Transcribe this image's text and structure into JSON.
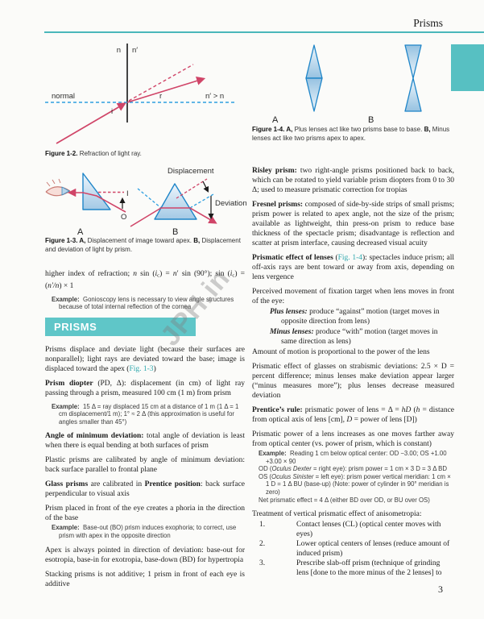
{
  "page": {
    "header_title": "Prisms",
    "page_number": "3",
    "watermark": "JPH.in"
  },
  "colors": {
    "accent_teal": "#4ab7bb",
    "section_bar_teal": "#5fc6c8",
    "chapter_tab_teal": "#57c0c2",
    "figure_ref_teal": "#2fa8ad",
    "ray_red": "#d04568",
    "prism_blue": "#1f85c8",
    "normal_blue": "#2e9fe0"
  },
  "fig12": {
    "labels": {
      "medium_left": "n",
      "medium_right": "n′",
      "normal": "normal",
      "incidence": "i",
      "refraction": "r",
      "relation": "n′ > n"
    },
    "caption": [
      {
        "t": "Figure 1-2. ",
        "s": "b"
      },
      {
        "t": "Refraction of light ray."
      }
    ]
  },
  "fig13": {
    "labels": {
      "image": "I",
      "object": "O",
      "panel_a": "A",
      "panel_b": "B",
      "displacement": "Displacement",
      "deviation": "Deviation"
    },
    "caption": [
      {
        "t": "Figure 1-3. ",
        "s": "b"
      },
      {
        "t": "A,",
        "s": "b"
      },
      {
        "t": " Displacement of image toward apex. "
      },
      {
        "t": "B,",
        "s": "b"
      },
      {
        "t": " Displacement and deviation of light by prism."
      }
    ]
  },
  "fig14": {
    "labels": {
      "panel_a": "A",
      "panel_b": "B"
    },
    "caption": [
      {
        "t": "Figure 1-4. ",
        "s": "b"
      },
      {
        "t": "A,",
        "s": "b"
      },
      {
        "t": " Plus lenses act like two prisms base to base. "
      },
      {
        "t": "B,",
        "s": "b"
      },
      {
        "t": " Minus lenses act like two prisms apex to apex."
      }
    ]
  },
  "left": {
    "blocks": [
      {
        "type": "p",
        "seg": [
          {
            "t": "higher index of refraction; "
          },
          {
            "t": "n",
            "s": "i"
          },
          {
            "t": " sin ("
          },
          {
            "t": "i",
            "s": "i"
          },
          {
            "t": "c",
            "s": "u"
          },
          {
            "t": ") = "
          },
          {
            "t": "n",
            "s": "i"
          },
          {
            "t": "′ sin (90°); sin ("
          },
          {
            "t": "i",
            "s": "i"
          },
          {
            "t": "c",
            "s": "u"
          },
          {
            "t": ") = ("
          },
          {
            "t": "n′/n",
            "s": "i"
          },
          {
            "t": ") × 1"
          }
        ]
      },
      {
        "type": "ex",
        "lines": [
          [
            {
              "t": "Example:  ",
              "s": "b"
            },
            {
              "t": "Gonioscopy lens is necessary to view angle structures because of total internal reflection of the cornea"
            }
          ]
        ]
      },
      {
        "type": "h",
        "seg": [
          {
            "t": "PRISMS"
          }
        ]
      },
      {
        "type": "p",
        "seg": [
          {
            "t": "Prisms displace and deviate light (because their surfaces are nonparallel); light rays are deviated toward the base; image is displaced toward the apex ("
          },
          {
            "t": "Fig. 1-3",
            "s": "t"
          },
          {
            "t": ")"
          }
        ]
      },
      {
        "type": "p",
        "seg": [
          {
            "t": "Prism diopter",
            "s": "b"
          },
          {
            "t": " (PD, Δ): displacement (in cm) of light ray passing through a prism, measured 100 cm (1 m) from prism"
          }
        ]
      },
      {
        "type": "ex",
        "lines": [
          [
            {
              "t": "Example:  ",
              "s": "b"
            },
            {
              "t": "15 Δ = ray displaced 15 cm at a distance of 1 m (1 Δ = 1 cm displacement/1 m); 1° ≈ 2 Δ (this approximation is useful for angles smaller than 45°)"
            }
          ]
        ]
      },
      {
        "type": "p",
        "seg": [
          {
            "t": "Angle of minimum deviation:",
            "s": "b"
          },
          {
            "t": " total angle of deviation is least when there is equal bending at both surfaces of prism"
          }
        ]
      },
      {
        "type": "p",
        "seg": [
          {
            "t": "Plastic prisms are calibrated by angle of minimum deviation: back surface parallel to frontal plane"
          }
        ]
      },
      {
        "type": "p",
        "seg": [
          {
            "t": "Glass prisms",
            "s": "b"
          },
          {
            "t": " are calibrated in "
          },
          {
            "t": "Prentice position",
            "s": "b"
          },
          {
            "t": ": back surface perpendicular to visual axis"
          }
        ]
      },
      {
        "type": "p",
        "cls": "tight",
        "seg": [
          {
            "t": "Prism placed in front of the eye creates a phoria in the direction of the base"
          }
        ]
      },
      {
        "type": "ex",
        "lines": [
          [
            {
              "t": "Example:  ",
              "s": "b"
            },
            {
              "t": "Base-out (BO) prism induces exophoria; to correct, use prism with apex in the opposite direction"
            }
          ]
        ]
      },
      {
        "type": "p",
        "seg": [
          {
            "t": "Apex is always pointed in direction of deviation: base-out for esotropia, base-in for exotropia, base-down (BD) for hypertropia"
          }
        ]
      },
      {
        "type": "p",
        "seg": [
          {
            "t": "Stacking prisms is not additive; 1 prism in front of each eye is additive"
          }
        ]
      }
    ]
  },
  "right": {
    "blocks": [
      {
        "type": "p",
        "seg": [
          {
            "t": "Risley prism:",
            "s": "b"
          },
          {
            "t": " two right-angle prisms positioned back to back, which can be rotated to yield variable prism diopters from 0 to 30 Δ; used to measure prismatic correction for tropias"
          }
        ]
      },
      {
        "type": "p",
        "seg": [
          {
            "t": "Fresnel prisms:",
            "s": "b"
          },
          {
            "t": " composed of side-by-side strips of small prisms; prism power is related to apex angle, not the size of the prism; available as lightweight, thin press-on prism to reduce base thickness of the spectacle prism; disadvantage is reflection and scatter at prism interface, causing decreased visual acuity"
          }
        ]
      },
      {
        "type": "p",
        "seg": [
          {
            "t": "Prismatic effect of lenses",
            "s": "b"
          },
          {
            "t": " ("
          },
          {
            "t": "Fig. 1-4",
            "s": "t"
          },
          {
            "t": "): spectacles induce prism; all off-axis rays are bent toward or away from axis, depending on lens vergence"
          }
        ]
      },
      {
        "type": "p",
        "cls": "tight",
        "seg": [
          {
            "t": "Perceived movement of fixation target when lens moves in front of the eye:"
          }
        ]
      },
      {
        "type": "p",
        "cls": "ind1",
        "seg": [
          {
            "t": "Plus lenses:",
            "s": "b i"
          },
          {
            "t": " produce “against” motion (target moves in opposite direction from lens)"
          }
        ]
      },
      {
        "type": "p",
        "cls": "ind1",
        "seg": [
          {
            "t": "Minus lenses:",
            "s": "b i"
          },
          {
            "t": " produce “with” motion (target moves in same direction as lens)"
          }
        ]
      },
      {
        "type": "p",
        "seg": [
          {
            "t": "Amount of motion is proportional to the power of the lens"
          }
        ]
      },
      {
        "type": "p",
        "seg": [
          {
            "t": "Prismatic effect of glasses on strabismic deviations: 2.5 × D = percent difference; minus lenses make deviation appear larger (“minus measures more”); plus lenses decrease measured deviation"
          }
        ]
      },
      {
        "type": "p",
        "seg": [
          {
            "t": "Prentice’s rule:",
            "s": "b"
          },
          {
            "t": " prismatic power of lens = Δ = "
          },
          {
            "t": "hD",
            "s": "i"
          },
          {
            "t": " ("
          },
          {
            "t": "h",
            "s": "i"
          },
          {
            "t": " = distance from optical axis of lens [cm], "
          },
          {
            "t": "D",
            "s": "i"
          },
          {
            "t": " = power of lens [D])"
          }
        ]
      },
      {
        "type": "p",
        "cls": "tight",
        "seg": [
          {
            "t": "Prismatic power of a lens increases as one moves farther away from optical center (vs. power of prism, which is constant)"
          }
        ]
      },
      {
        "type": "ex",
        "lines": [
          [
            {
              "t": "Example:  ",
              "s": "b"
            },
            {
              "t": "Reading 1 cm below optical center: OD −3.00; OS +1.00 +3.00 × 90"
            }
          ],
          [
            {
              "t": "OD ("
            },
            {
              "t": "Oculus Dexter",
              "s": "i"
            },
            {
              "t": " = right eye): prism power = 1 cm × 3 D = 3 Δ BD"
            }
          ],
          [
            {
              "t": "OS ("
            },
            {
              "t": "Oculus Sinister",
              "s": "i"
            },
            {
              "t": " = left eye): prism power vertical meridian: 1 cm × 1 D = 1 Δ BU (base-up) (Note: power of cylinder in 90° meridian is zero)"
            }
          ],
          [
            {
              "t": "Net prismatic effect = 4 Δ (either BD over OD, or BU over OS)"
            }
          ]
        ]
      },
      {
        "type": "p",
        "cls": "tight",
        "seg": [
          {
            "t": "Treatment of vertical prismatic effect of anisometropia:"
          }
        ]
      },
      {
        "type": "ol",
        "items": [
          {
            "num": "1.",
            "seg": [
              {
                "t": "Contact lenses (CL) (optical center moves with eyes)"
              }
            ]
          },
          {
            "num": "2.",
            "seg": [
              {
                "t": "Lower optical centers of lenses (reduce amount of induced prism)"
              }
            ]
          },
          {
            "num": "3.",
            "seg": [
              {
                "t": "Prescribe slab-off prism (technique of grinding lens [done to the more minus of the 2 lenses] to"
              }
            ]
          }
        ]
      }
    ]
  }
}
